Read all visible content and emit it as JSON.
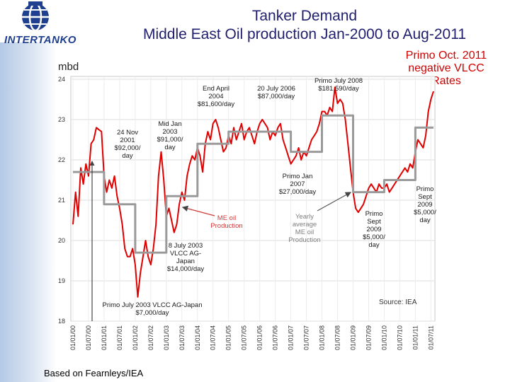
{
  "title": {
    "line1": "Tanker Demand",
    "line2": "Middle East Oil production Jan-2000 to Aug-2011"
  },
  "logo": {
    "name": "INTERTANKO"
  },
  "top_note": [
    "Primo Oct. 2011",
    "negative VLCC",
    "Rates"
  ],
  "footer": "Based on Fearnleys/IEA",
  "colors": {
    "monthly": "#e00000",
    "yearly": "#9a9a9a",
    "title": "#1f1f6e",
    "annotation_red": "#d00000"
  },
  "chart_data": {
    "type": "line",
    "ylabel": "mbd",
    "ylim": [
      18,
      24
    ],
    "yticks": [
      "18",
      "19",
      "20",
      "21",
      "22",
      "23",
      "24"
    ],
    "x_tick_labels": [
      "01/01/00",
      "01/07/00",
      "01/01/01",
      "01/07/01",
      "01/01/02",
      "01/07/02",
      "01/01/03",
      "01/07/03",
      "01/01/04",
      "01/07/04",
      "01/01/05",
      "01/07/05",
      "01/01/06",
      "01/07/06",
      "01/01/07",
      "01/07/07",
      "01/01/08",
      "01/07/08",
      "01/01/09",
      "01/07/09",
      "01/01/10",
      "01/07/10",
      "01/01/11",
      "01/07/11"
    ],
    "grid": true,
    "source": "Source: IEA",
    "series": [
      {
        "name": "ME oil Production",
        "kind": "monthly",
        "points": [
          [
            "2000-01",
            20.4
          ],
          [
            "2000-02",
            21.2
          ],
          [
            "2000-03",
            20.6
          ],
          [
            "2000-04",
            21.8
          ],
          [
            "2000-05",
            21.4
          ],
          [
            "2000-06",
            21.9
          ],
          [
            "2000-07",
            21.6
          ],
          [
            "2000-08",
            22.4
          ],
          [
            "2000-09",
            22.5
          ],
          [
            "2000-10",
            22.8
          ],
          [
            "2000-11",
            22.75
          ],
          [
            "2000-12",
            22.7
          ],
          [
            "2001-01",
            21.6
          ],
          [
            "2001-02",
            21.2
          ],
          [
            "2001-03",
            21.5
          ],
          [
            "2001-04",
            21.3
          ],
          [
            "2001-05",
            21.6
          ],
          [
            "2001-06",
            21.1
          ],
          [
            "2001-07",
            20.8
          ],
          [
            "2001-08",
            20.4
          ],
          [
            "2001-09",
            19.8
          ],
          [
            "2001-10",
            19.6
          ],
          [
            "2001-11",
            19.6
          ],
          [
            "2001-12",
            19.8
          ],
          [
            "2002-01",
            19.4
          ],
          [
            "2002-02",
            18.6
          ],
          [
            "2002-03",
            19.2
          ],
          [
            "2002-04",
            19.6
          ],
          [
            "2002-05",
            20.0
          ],
          [
            "2002-06",
            19.6
          ],
          [
            "2002-07",
            19.4
          ],
          [
            "2002-08",
            19.8
          ],
          [
            "2002-09",
            20.4
          ],
          [
            "2002-10",
            21.6
          ],
          [
            "2002-11",
            22.2
          ],
          [
            "2002-12",
            21.5
          ],
          [
            "2003-01",
            20.6
          ],
          [
            "2003-02",
            20.8
          ],
          [
            "2003-03",
            20.5
          ],
          [
            "2003-04",
            20.2
          ],
          [
            "2003-05",
            20.4
          ],
          [
            "2003-06",
            20.9
          ],
          [
            "2003-07",
            21.2
          ],
          [
            "2003-08",
            21.0
          ],
          [
            "2003-09",
            21.6
          ],
          [
            "2003-10",
            21.9
          ],
          [
            "2003-11",
            22.1
          ],
          [
            "2003-12",
            22.0
          ],
          [
            "2004-01",
            22.3
          ],
          [
            "2004-02",
            22.1
          ],
          [
            "2004-03",
            21.7
          ],
          [
            "2004-04",
            22.4
          ],
          [
            "2004-05",
            22.7
          ],
          [
            "2004-06",
            22.5
          ],
          [
            "2004-07",
            22.9
          ],
          [
            "2004-08",
            23.0
          ],
          [
            "2004-09",
            22.8
          ],
          [
            "2004-10",
            22.5
          ],
          [
            "2004-11",
            22.2
          ],
          [
            "2004-12",
            22.3
          ],
          [
            "2005-01",
            22.6
          ],
          [
            "2005-02",
            22.4
          ],
          [
            "2005-03",
            22.8
          ],
          [
            "2005-04",
            22.5
          ],
          [
            "2005-05",
            22.7
          ],
          [
            "2005-06",
            22.9
          ],
          [
            "2005-07",
            22.5
          ],
          [
            "2005-08",
            22.7
          ],
          [
            "2005-09",
            22.8
          ],
          [
            "2005-10",
            22.6
          ],
          [
            "2005-11",
            22.4
          ],
          [
            "2005-12",
            22.7
          ],
          [
            "2006-01",
            22.9
          ],
          [
            "2006-02",
            23.0
          ],
          [
            "2006-03",
            22.9
          ],
          [
            "2006-04",
            22.8
          ],
          [
            "2006-05",
            22.5
          ],
          [
            "2006-06",
            22.7
          ],
          [
            "2006-07",
            22.6
          ],
          [
            "2006-08",
            22.8
          ],
          [
            "2006-09",
            22.9
          ],
          [
            "2006-10",
            22.5
          ],
          [
            "2006-11",
            22.3
          ],
          [
            "2006-12",
            22.1
          ],
          [
            "2007-01",
            21.9
          ],
          [
            "2007-02",
            22.0
          ],
          [
            "2007-03",
            22.1
          ],
          [
            "2007-04",
            22.3
          ],
          [
            "2007-05",
            22.0
          ],
          [
            "2007-06",
            22.2
          ],
          [
            "2007-07",
            22.1
          ],
          [
            "2007-08",
            22.3
          ],
          [
            "2007-09",
            22.5
          ],
          [
            "2007-10",
            22.6
          ],
          [
            "2007-11",
            22.7
          ],
          [
            "2007-12",
            22.9
          ],
          [
            "2008-01",
            23.2
          ],
          [
            "2008-02",
            23.2
          ],
          [
            "2008-03",
            23.1
          ],
          [
            "2008-04",
            23.3
          ],
          [
            "2008-05",
            23.2
          ],
          [
            "2008-06",
            23.8
          ],
          [
            "2008-07",
            23.4
          ],
          [
            "2008-08",
            23.5
          ],
          [
            "2008-09",
            23.4
          ],
          [
            "2008-10",
            23.0
          ],
          [
            "2008-11",
            22.4
          ],
          [
            "2008-12",
            21.8
          ],
          [
            "2009-01",
            21.2
          ],
          [
            "2009-02",
            20.8
          ],
          [
            "2009-03",
            20.7
          ],
          [
            "2009-04",
            20.8
          ],
          [
            "2009-05",
            20.9
          ],
          [
            "2009-06",
            21.1
          ],
          [
            "2009-07",
            21.3
          ],
          [
            "2009-08",
            21.4
          ],
          [
            "2009-09",
            21.3
          ],
          [
            "2009-10",
            21.2
          ],
          [
            "2009-11",
            21.4
          ],
          [
            "2009-12",
            21.3
          ],
          [
            "2010-01",
            21.3
          ],
          [
            "2010-02",
            21.4
          ],
          [
            "2010-03",
            21.2
          ],
          [
            "2010-04",
            21.3
          ],
          [
            "2010-05",
            21.4
          ],
          [
            "2010-06",
            21.5
          ],
          [
            "2010-07",
            21.6
          ],
          [
            "2010-08",
            21.7
          ],
          [
            "2010-09",
            21.8
          ],
          [
            "2010-10",
            21.7
          ],
          [
            "2010-11",
            21.9
          ],
          [
            "2010-12",
            21.8
          ],
          [
            "2011-01",
            22.2
          ],
          [
            "2011-02",
            22.5
          ],
          [
            "2011-03",
            22.4
          ],
          [
            "2011-04",
            22.3
          ],
          [
            "2011-05",
            22.6
          ],
          [
            "2011-06",
            23.2
          ],
          [
            "2011-07",
            23.5
          ],
          [
            "2011-08",
            23.7
          ]
        ]
      },
      {
        "name": "Yearly average ME oil Production",
        "kind": "yearly",
        "points": [
          [
            "2000-01",
            21.7
          ],
          [
            "2001-01",
            21.7
          ],
          [
            "2001-01",
            20.9
          ],
          [
            "2002-01",
            20.9
          ],
          [
            "2002-01",
            19.7
          ],
          [
            "2003-01",
            19.7
          ],
          [
            "2003-01",
            21.1
          ],
          [
            "2004-01",
            21.1
          ],
          [
            "2004-01",
            22.4
          ],
          [
            "2005-01",
            22.4
          ],
          [
            "2005-01",
            22.7
          ],
          [
            "2007-01",
            22.7
          ],
          [
            "2007-01",
            22.2
          ],
          [
            "2008-01",
            22.2
          ],
          [
            "2008-01",
            23.1
          ],
          [
            "2009-01",
            23.1
          ],
          [
            "2009-01",
            21.2
          ],
          [
            "2010-01",
            21.2
          ],
          [
            "2010-01",
            21.5
          ],
          [
            "2011-01",
            21.5
          ],
          [
            "2011-01",
            22.8
          ],
          [
            "2011-08",
            22.8
          ]
        ]
      }
    ],
    "annotations": [
      {
        "id": "a1",
        "lines": [
          "24 Nov",
          "2001",
          "$92,000/",
          "day"
        ],
        "color": "dark"
      },
      {
        "id": "a2",
        "lines": [
          "Mid Jan",
          "2003",
          "$91,000/",
          "day"
        ],
        "color": "dark"
      },
      {
        "id": "a3",
        "lines": [
          "End April",
          "2004",
          "$81,600/day"
        ],
        "color": "dark"
      },
      {
        "id": "a4",
        "lines": [
          "20 July 2006",
          "$87,000/day"
        ],
        "color": "dark"
      },
      {
        "id": "a5",
        "lines": [
          "Primo July 2008",
          "$181,590/day"
        ],
        "color": "dark"
      },
      {
        "id": "a6",
        "lines": [
          "Primo Jan",
          "2007",
          "$27,000/day"
        ],
        "color": "dark"
      },
      {
        "id": "a7",
        "lines": [
          "ME oil",
          "Production"
        ],
        "color": "red"
      },
      {
        "id": "a8",
        "lines": [
          "Yearly",
          "average",
          "ME oil",
          "Production"
        ],
        "color": "gray"
      },
      {
        "id": "a9",
        "lines": [
          "8 July 2003",
          "VLCC AG-",
          "Japan",
          "$14,000/day"
        ],
        "color": "dark"
      },
      {
        "id": "a10",
        "lines": [
          "Primo",
          "Sept",
          "2009",
          "$5,000/",
          "day"
        ],
        "color": "dark"
      },
      {
        "id": "a11",
        "lines": [
          "Primo",
          "Sept",
          "2009",
          "$5,000/",
          "day"
        ],
        "color": "dark"
      },
      {
        "id": "a12",
        "lines": [
          "Primo July 2003 VLCC AG-Japan",
          "$7,000/day"
        ],
        "color": "dark"
      }
    ]
  }
}
